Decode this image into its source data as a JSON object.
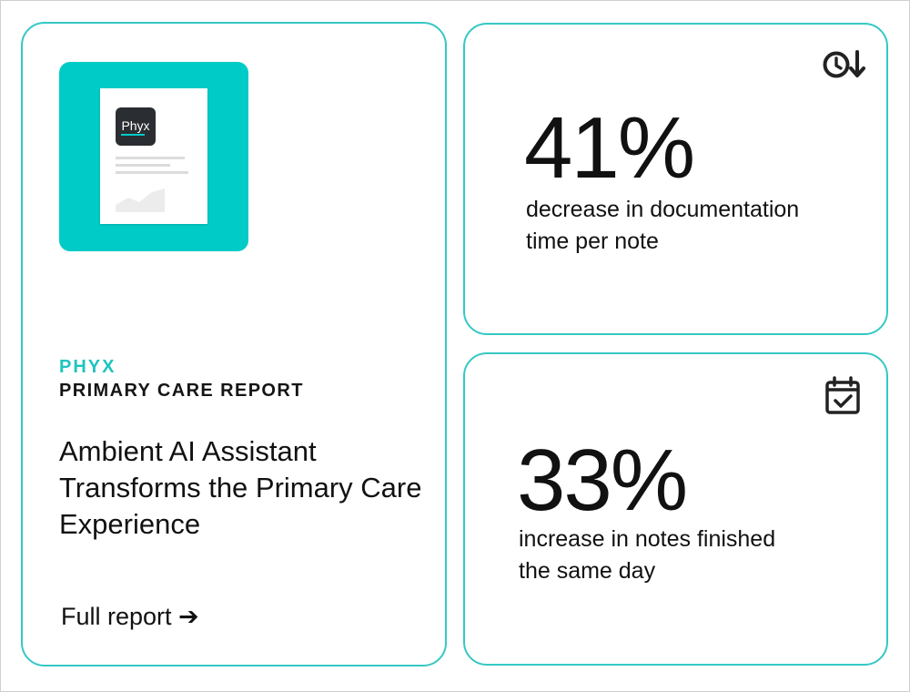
{
  "report": {
    "thumbnail": {
      "logo_text": "Phyx",
      "background_color": "#00cbc6"
    },
    "brand": "PHYX",
    "subtitle": "PRIMARY CARE REPORT",
    "title": "Ambient AI Assistant Transforms the Primary Care Experience",
    "link_label": "Full report ➔"
  },
  "stats": [
    {
      "icon": "clock-down-arrow-icon",
      "value": "41%",
      "description": "decrease in documentation time per note"
    },
    {
      "icon": "calendar-check-icon",
      "value": "33%",
      "description": "increase in notes finished the same day"
    }
  ],
  "colors": {
    "accent": "#35c8c5",
    "brand_text": "#1fc4bf",
    "text": "#111111"
  }
}
